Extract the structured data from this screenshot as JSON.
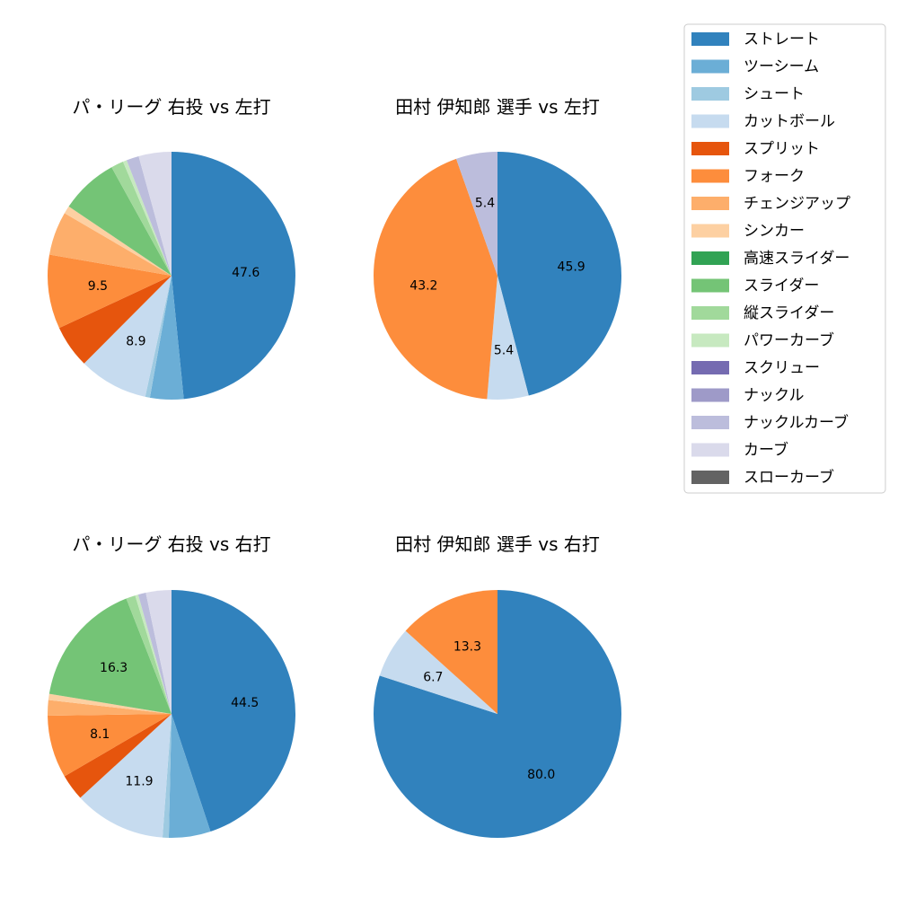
{
  "legend": {
    "items": [
      {
        "label": "ストレート",
        "color": "#3182bd"
      },
      {
        "label": "ツーシーム",
        "color": "#6baed6"
      },
      {
        "label": "シュート",
        "color": "#9ecae1"
      },
      {
        "label": "カットボール",
        "color": "#c6dbef"
      },
      {
        "label": "スプリット",
        "color": "#e6550d"
      },
      {
        "label": "フォーク",
        "color": "#fd8d3c"
      },
      {
        "label": "チェンジアップ",
        "color": "#fdae6b"
      },
      {
        "label": "シンカー",
        "color": "#fdd0a2"
      },
      {
        "label": "高速スライダー",
        "color": "#31a354"
      },
      {
        "label": "スライダー",
        "color": "#74c476"
      },
      {
        "label": "縦スライダー",
        "color": "#a1d99b"
      },
      {
        "label": "パワーカーブ",
        "color": "#c7e9c0"
      },
      {
        "label": "スクリュー",
        "color": "#756bb1"
      },
      {
        "label": "ナックル",
        "color": "#9e9ac8"
      },
      {
        "label": "ナックルカーブ",
        "color": "#bcbddc"
      },
      {
        "label": "カーブ",
        "color": "#dadaeb"
      },
      {
        "label": "スローカーブ",
        "color": "#636363"
      }
    ]
  },
  "chart_data": [
    {
      "type": "pie",
      "title": "パ・リーグ 右投 vs 左打",
      "slices": [
        {
          "label": "ストレート",
          "value": 47.6,
          "color": "#3182bd",
          "show_label": "47.6"
        },
        {
          "label": "ツーシーム",
          "value": 4.3,
          "color": "#6baed6"
        },
        {
          "label": "シュート",
          "value": 0.6,
          "color": "#9ecae1"
        },
        {
          "label": "カットボール",
          "value": 8.9,
          "color": "#c6dbef",
          "show_label": "8.9"
        },
        {
          "label": "スプリット",
          "value": 5.5,
          "color": "#e6550d"
        },
        {
          "label": "フォーク",
          "value": 9.5,
          "color": "#fd8d3c",
          "show_label": "9.5"
        },
        {
          "label": "チェンジアップ",
          "value": 5.6,
          "color": "#fdae6b"
        },
        {
          "label": "シンカー",
          "value": 1.0,
          "color": "#fdd0a2"
        },
        {
          "label": "スライダー",
          "value": 7.4,
          "color": "#74c476"
        },
        {
          "label": "縦スライダー",
          "value": 1.6,
          "color": "#a1d99b"
        },
        {
          "label": "パワーカーブ",
          "value": 0.5,
          "color": "#c7e9c0"
        },
        {
          "label": "ナックルカーブ",
          "value": 1.6,
          "color": "#bcbddc"
        },
        {
          "label": "カーブ",
          "value": 4.2,
          "color": "#dadaeb"
        }
      ]
    },
    {
      "type": "pie",
      "title": "田村 伊知郎 選手 vs 左打",
      "slices": [
        {
          "label": "ストレート",
          "value": 45.9,
          "color": "#3182bd",
          "show_label": "45.9"
        },
        {
          "label": "カットボール",
          "value": 5.4,
          "color": "#c6dbef",
          "show_label": "5.4"
        },
        {
          "label": "フォーク",
          "value": 43.2,
          "color": "#fd8d3c",
          "show_label": "43.2"
        },
        {
          "label": "ナックルカーブ",
          "value": 5.4,
          "color": "#bcbddc",
          "show_label": "5.4"
        }
      ]
    },
    {
      "type": "pie",
      "title": "パ・リーグ 右投 vs 右打",
      "slices": [
        {
          "label": "ストレート",
          "value": 44.5,
          "color": "#3182bd",
          "show_label": "44.5"
        },
        {
          "label": "ツーシーム",
          "value": 5.4,
          "color": "#6baed6"
        },
        {
          "label": "シュート",
          "value": 0.8,
          "color": "#9ecae1"
        },
        {
          "label": "カットボール",
          "value": 11.9,
          "color": "#c6dbef",
          "show_label": "11.9"
        },
        {
          "label": "スプリット",
          "value": 3.4,
          "color": "#e6550d"
        },
        {
          "label": "フォーク",
          "value": 8.1,
          "color": "#fd8d3c",
          "show_label": "8.1"
        },
        {
          "label": "チェンジアップ",
          "value": 2.0,
          "color": "#fdae6b"
        },
        {
          "label": "シンカー",
          "value": 0.8,
          "color": "#fdd0a2"
        },
        {
          "label": "スライダー",
          "value": 16.3,
          "color": "#74c476",
          "show_label": "16.3"
        },
        {
          "label": "縦スライダー",
          "value": 1.2,
          "color": "#a1d99b"
        },
        {
          "label": "パワーカーブ",
          "value": 0.4,
          "color": "#c7e9c0"
        },
        {
          "label": "ナックルカーブ",
          "value": 1.0,
          "color": "#bcbddc"
        },
        {
          "label": "カーブ",
          "value": 3.3,
          "color": "#dadaeb"
        }
      ]
    },
    {
      "type": "pie",
      "title": "田村 伊知郎 選手 vs 右打",
      "slices": [
        {
          "label": "ストレート",
          "value": 80.0,
          "color": "#3182bd",
          "show_label": "80.0"
        },
        {
          "label": "カットボール",
          "value": 6.7,
          "color": "#c6dbef",
          "show_label": "6.7"
        },
        {
          "label": "フォーク",
          "value": 13.3,
          "color": "#fd8d3c",
          "show_label": "13.3"
        }
      ]
    }
  ]
}
